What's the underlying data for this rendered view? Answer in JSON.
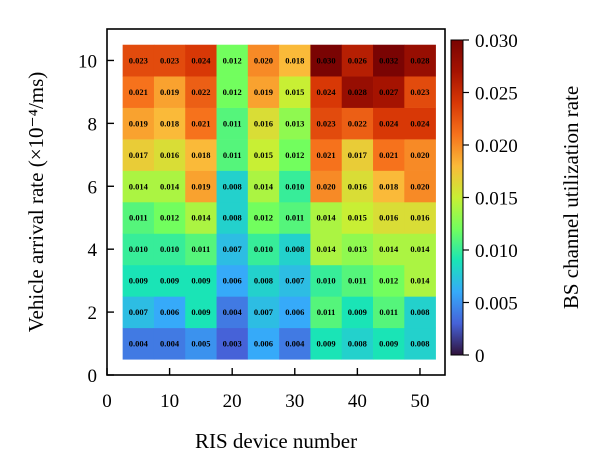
{
  "chart_data": {
    "type": "heatmap",
    "xlabel": "RIS device number",
    "ylabel": "Vehicle arrival rate (×10⁻⁴/ms)",
    "colorbar_label": "BS channel utilization rate",
    "xlim": [
      0,
      54
    ],
    "ylim": [
      0,
      11
    ],
    "x_ticks": [
      "0",
      "10",
      "20",
      "30",
      "40",
      "50"
    ],
    "y_ticks": [
      "0",
      "2",
      "4",
      "6",
      "8",
      "10"
    ],
    "colorbar_ticks": [
      "0",
      "0.005",
      "0.010",
      "0.015",
      "0.020",
      "0.025",
      "0.030"
    ],
    "colorbar_range": [
      0,
      0.03
    ],
    "colormap": "turbo",
    "x": [
      5,
      10,
      15,
      20,
      25,
      30,
      35,
      40,
      45,
      50
    ],
    "y": [
      1,
      2,
      3,
      4,
      5,
      6,
      7,
      8,
      9,
      10
    ],
    "values": [
      [
        "0.004",
        "0.004",
        "0.005",
        "0.003",
        "0.006",
        "0.004",
        "0.009",
        "0.008",
        "0.009",
        "0.008"
      ],
      [
        "0.007",
        "0.006",
        "0.009",
        "0.004",
        "0.007",
        "0.006",
        "0.011",
        "0.009",
        "0.011",
        "0.008"
      ],
      [
        "0.009",
        "0.009",
        "0.009",
        "0.006",
        "0.008",
        "0.007",
        "0.010",
        "0.011",
        "0.012",
        "0.014"
      ],
      [
        "0.010",
        "0.010",
        "0.011",
        "0.007",
        "0.010",
        "0.008",
        "0.014",
        "0.013",
        "0.014",
        "0.014"
      ],
      [
        "0.011",
        "0.012",
        "0.014",
        "0.008",
        "0.012",
        "0.011",
        "0.014",
        "0.015",
        "0.016",
        "0.016"
      ],
      [
        "0.014",
        "0.014",
        "0.019",
        "0.008",
        "0.014",
        "0.010",
        "0.020",
        "0.016",
        "0.018",
        "0.020"
      ],
      [
        "0.017",
        "0.016",
        "0.018",
        "0.011",
        "0.015",
        "0.012",
        "0.021",
        "0.017",
        "0.021",
        "0.020"
      ],
      [
        "0.019",
        "0.018",
        "0.021",
        "0.011",
        "0.016",
        "0.013",
        "0.023",
        "0.022",
        "0.024",
        "0.024"
      ],
      [
        "0.021",
        "0.019",
        "0.022",
        "0.012",
        "0.019",
        "0.015",
        "0.024",
        "0.028",
        "0.027",
        "0.023"
      ],
      [
        "0.023",
        "0.023",
        "0.024",
        "0.012",
        "0.020",
        "0.018",
        "0.030",
        "0.026",
        "0.032",
        "0.028"
      ]
    ]
  }
}
